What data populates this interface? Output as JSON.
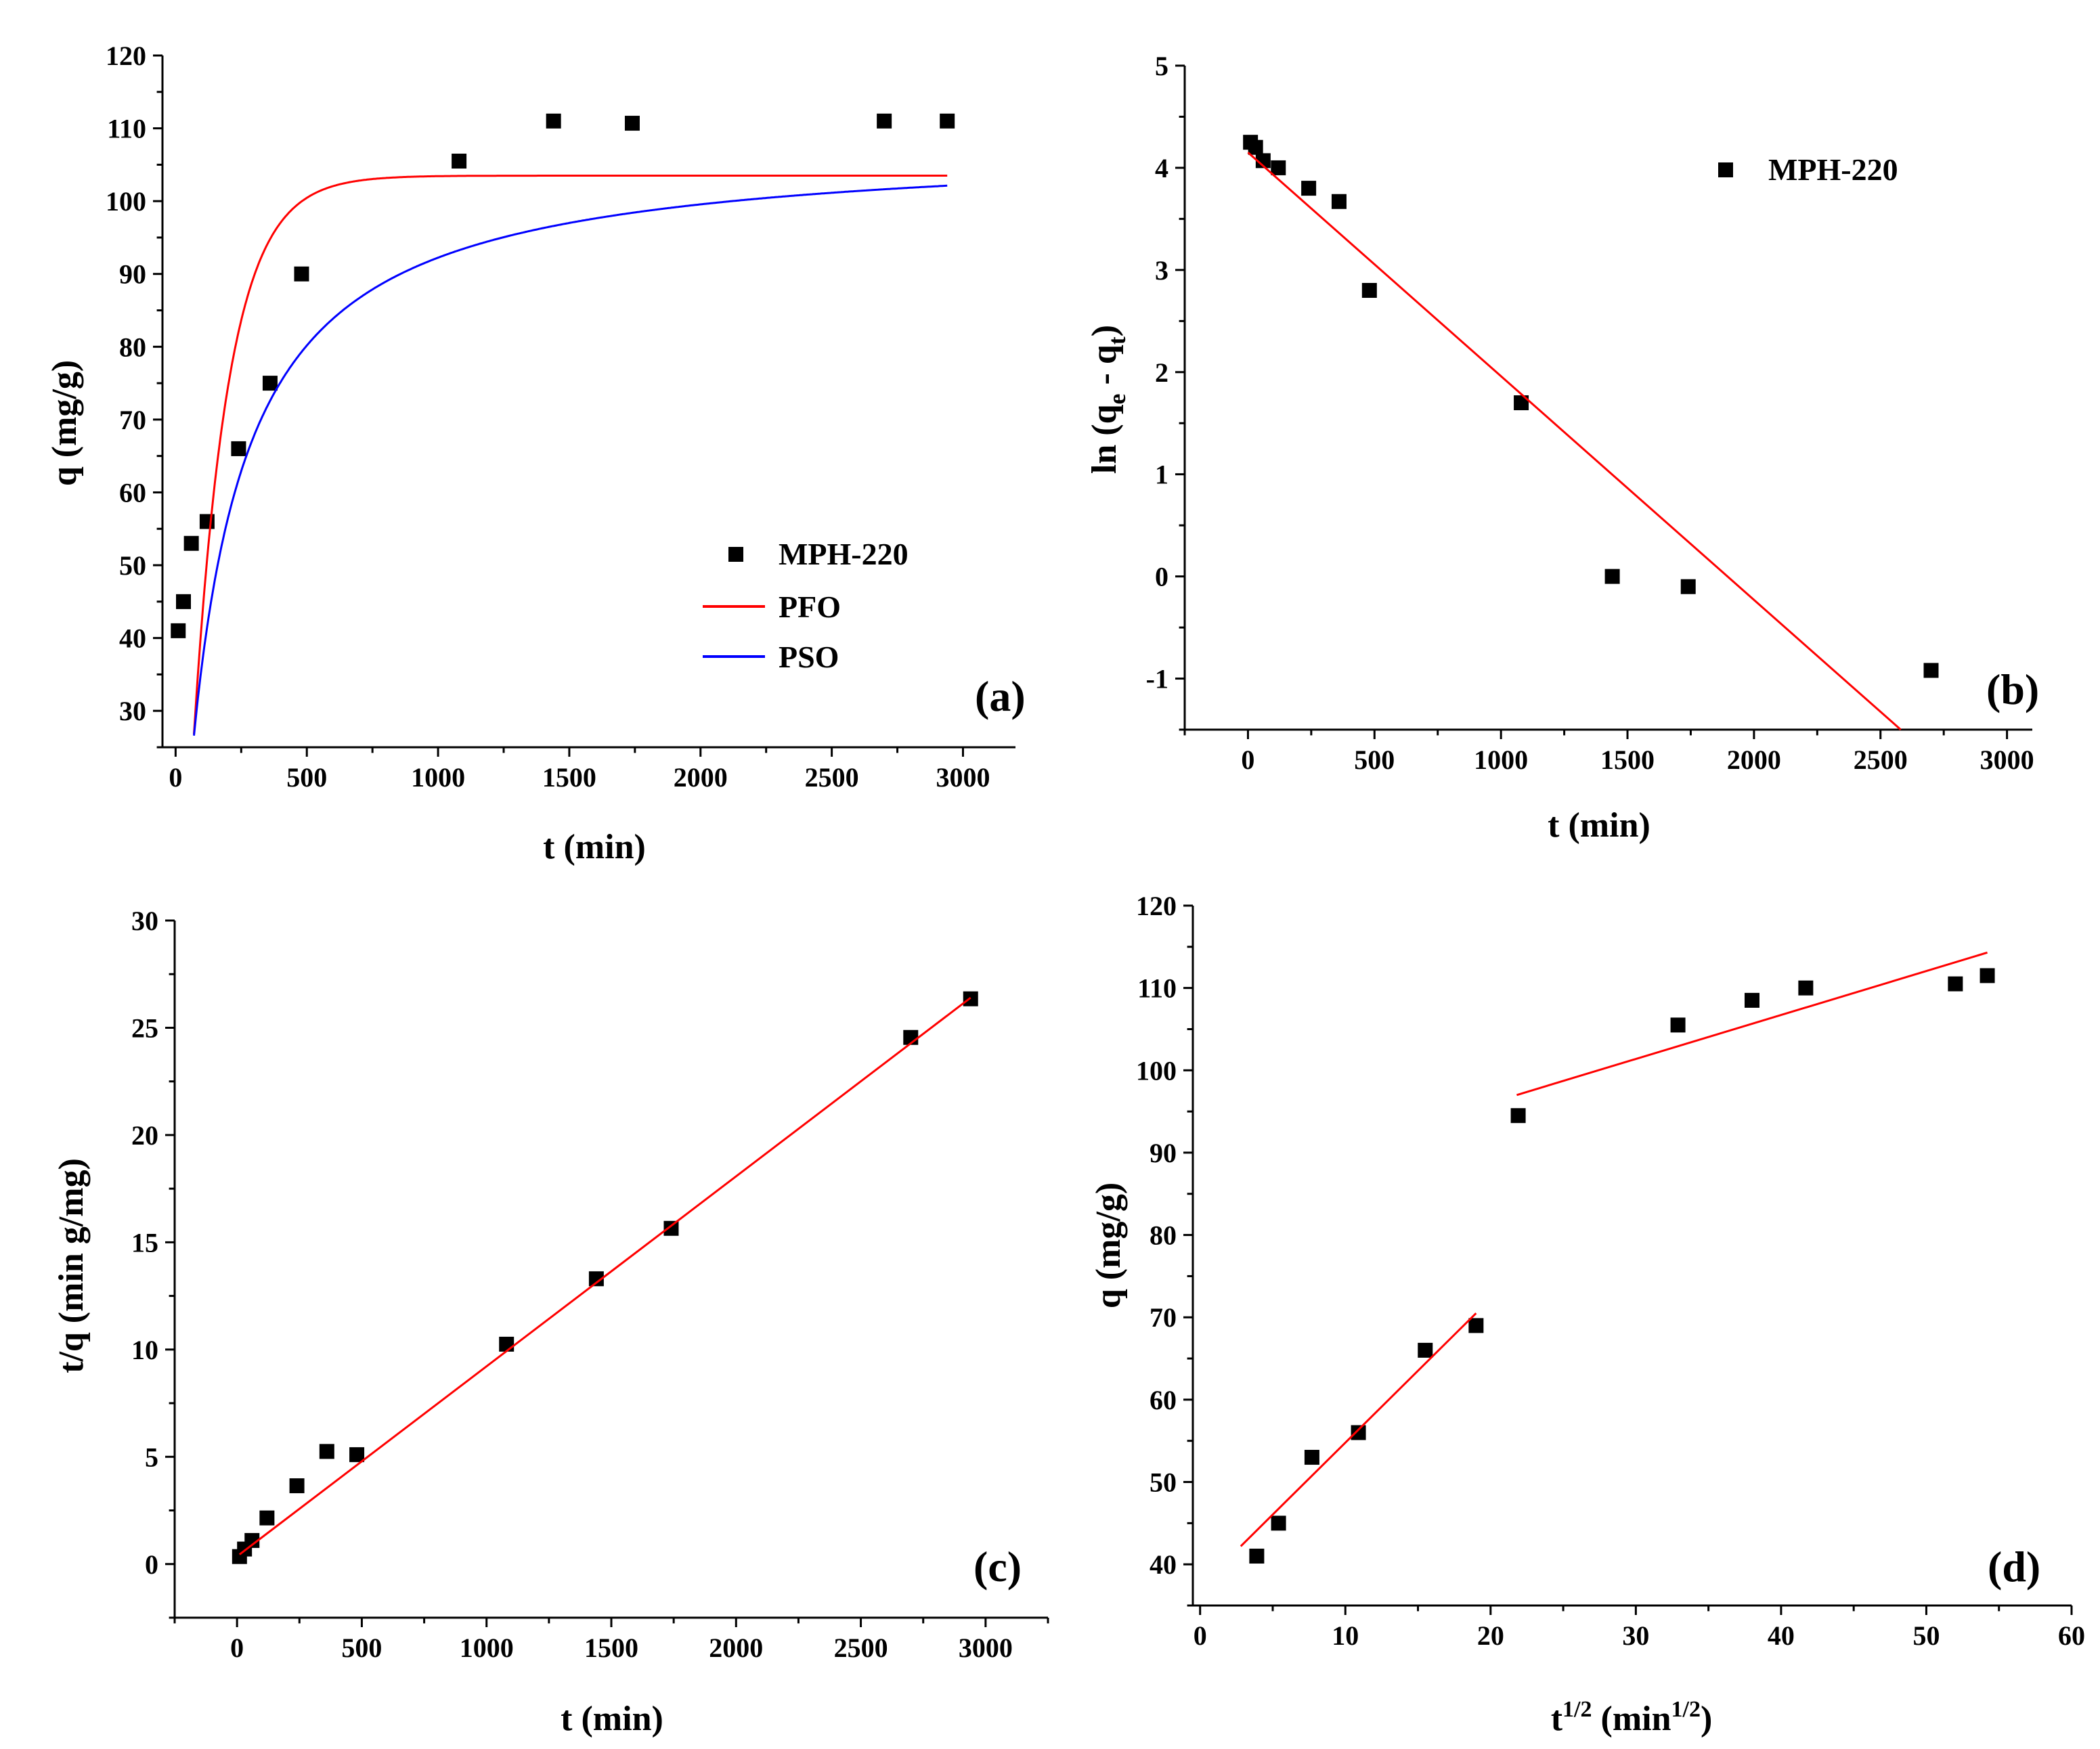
{
  "colors": {
    "pfo": "#ff0000",
    "pso": "#0000ff",
    "fit": "#ff0000",
    "marker": "#000000",
    "axis": "#000000"
  },
  "chart_data": [
    {
      "id": "a",
      "type": "scatter",
      "panel_label": "(a)",
      "xlabel": "t (min)",
      "ylabel": "q (mg/g)",
      "xlim": [
        -50,
        3200
      ],
      "ylim": [
        25,
        120
      ],
      "xticks": [
        0,
        500,
        1000,
        1500,
        2000,
        2500,
        3000
      ],
      "yticks": [
        30,
        40,
        50,
        60,
        70,
        80,
        90,
        100,
        110,
        120
      ],
      "legend": {
        "position": "bottom-right",
        "entries": [
          "MPH-220",
          "PFO",
          "PSO"
        ]
      },
      "series": [
        {
          "name": "MPH-220",
          "kind": "markers",
          "x": [
            10,
            30,
            60,
            120,
            240,
            360,
            480,
            1080,
            1440,
            1740,
            2700,
            2940
          ],
          "y": [
            41,
            45,
            53,
            56,
            66,
            75,
            90,
            105.5,
            111,
            110.7,
            111,
            111
          ]
        },
        {
          "name": "PFO",
          "kind": "model",
          "model": "pfo",
          "qe": 103.5,
          "k": 0.0075,
          "t0": 30,
          "tmax": 2940
        },
        {
          "name": "PSO",
          "kind": "model",
          "model": "pso",
          "qe": 108,
          "k": 5.5e-05,
          "t0": 15,
          "offset": -8,
          "tmax": 2940
        }
      ]
    },
    {
      "id": "b",
      "type": "scatter",
      "panel_label": "(b)",
      "xlabel": "t (min)",
      "ylabel_main": "ln (q",
      "ylabel_sub1": "e",
      "ylabel_mid": " - q",
      "ylabel_sub2": "t",
      "ylabel_end": ")",
      "xlim": [
        -250,
        3100
      ],
      "ylim": [
        -1.5,
        5
      ],
      "xticks": [
        0,
        500,
        1000,
        1500,
        2000,
        2500,
        3000
      ],
      "yticks": [
        -1,
        0,
        1,
        2,
        3,
        4,
        5
      ],
      "legend": {
        "position": "top-right",
        "entries": [
          "MPH-220"
        ]
      },
      "series": [
        {
          "name": "MPH-220",
          "kind": "markers",
          "x": [
            10,
            30,
            60,
            120,
            240,
            360,
            480,
            1080,
            1440,
            1740,
            2700
          ],
          "y": [
            4.25,
            4.2,
            4.07,
            4.0,
            3.8,
            3.67,
            2.8,
            1.7,
            0.0,
            -0.1,
            -0.92
          ]
        },
        {
          "name": "fit",
          "kind": "line",
          "x": [
            0,
            2580
          ],
          "y": [
            4.15,
            -1.5
          ]
        }
      ]
    },
    {
      "id": "c",
      "type": "scatter",
      "panel_label": "(c)",
      "xlabel": "t (min)",
      "ylabel": "t/q (min g/mg)",
      "xlim": [
        -250,
        3250
      ],
      "ylim": [
        -2.5,
        30
      ],
      "xticks": [
        0,
        500,
        1000,
        1500,
        2000,
        2500,
        3000
      ],
      "yticks": [
        0,
        5,
        10,
        15,
        20,
        25,
        30
      ],
      "series": [
        {
          "name": "MPH-220",
          "kind": "markers",
          "x": [
            10,
            30,
            60,
            120,
            240,
            360,
            480,
            1080,
            1440,
            1740,
            2700,
            2940
          ],
          "y": [
            0.35,
            0.7,
            1.1,
            2.15,
            3.65,
            5.25,
            5.1,
            10.25,
            13.3,
            15.65,
            24.55,
            26.35
          ]
        },
        {
          "name": "fit",
          "kind": "line",
          "x": [
            10,
            2940
          ],
          "y": [
            0.45,
            26.4
          ]
        }
      ]
    },
    {
      "id": "d",
      "type": "scatter",
      "panel_label": "(d)",
      "xlabel_main": "t",
      "xlabel_sup1": "1/2",
      "xlabel_mid": " (min",
      "xlabel_sup2": "1/2",
      "xlabel_end": ")",
      "ylabel": "q (mg/g)",
      "xlim": [
        -0.5,
        60
      ],
      "ylim": [
        35,
        120
      ],
      "xticks": [
        0,
        10,
        20,
        30,
        40,
        50,
        60
      ],
      "yticks": [
        40,
        50,
        60,
        70,
        80,
        90,
        100,
        110,
        120
      ],
      "series": [
        {
          "name": "MPH-220",
          "kind": "markers",
          "x": [
            3.9,
            5.4,
            7.7,
            10.9,
            15.5,
            19.0,
            21.9,
            32.9,
            38.0,
            41.7,
            52.0,
            54.2
          ],
          "y": [
            41,
            45,
            53,
            56,
            66,
            69,
            94.5,
            105.5,
            108.5,
            110,
            110.5,
            111.5
          ]
        },
        {
          "name": "fit-1",
          "kind": "line",
          "x": [
            2.8,
            19.0
          ],
          "y": [
            42.2,
            70.5
          ]
        },
        {
          "name": "fit-2",
          "kind": "line",
          "x": [
            21.8,
            54.2
          ],
          "y": [
            97,
            114.3
          ]
        }
      ]
    }
  ]
}
